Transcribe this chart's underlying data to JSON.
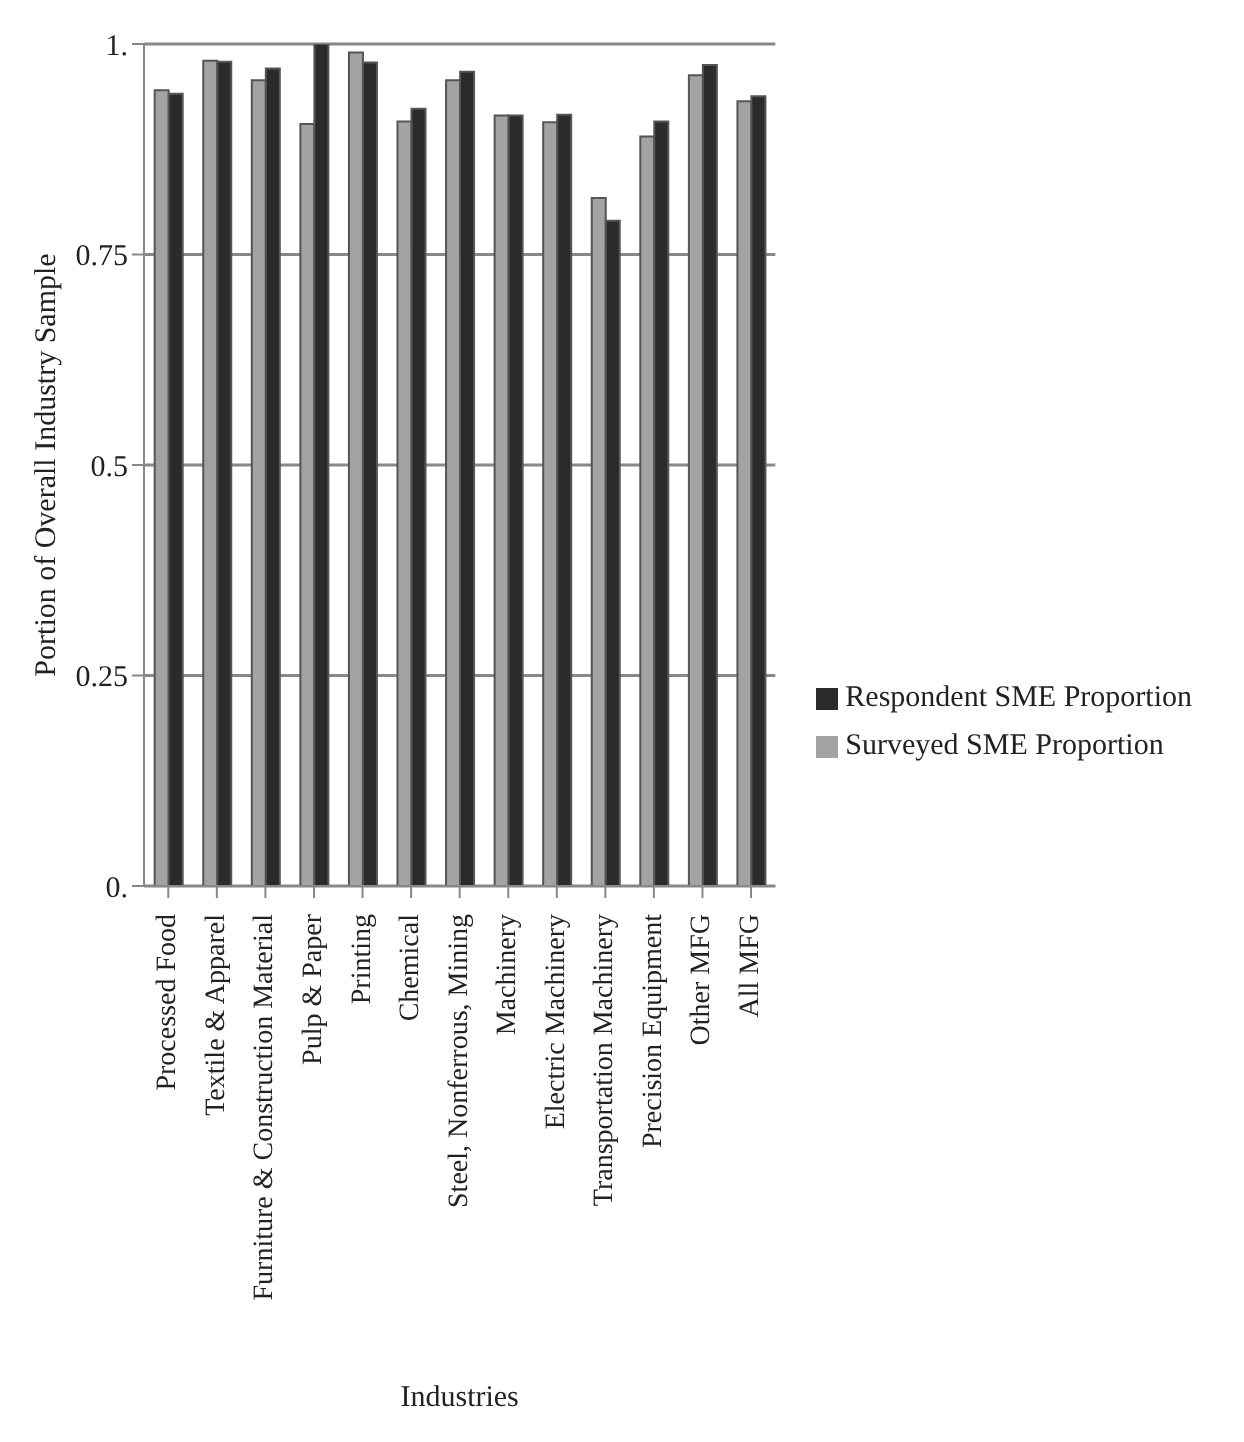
{
  "chart_data": {
    "type": "bar",
    "xlabel": "Industries",
    "ylabel": "Portion of Overall Industry Sample",
    "categories": [
      "Processed Food",
      "Textile & Apparel",
      "Furniture & Construction Material",
      "Pulp & Paper",
      "Printing",
      "Chemical",
      "Steel, Nonferrous, Mining",
      "Machinery",
      "Electric Machinery",
      "Transportation Machinery",
      "Precision Equipment",
      "Other MFG",
      "All MFG"
    ],
    "series": [
      {
        "name": "Surveyed SME Proportion",
        "color": "#a3a3a3",
        "values": [
          0.945,
          0.98,
          0.957,
          0.905,
          0.99,
          0.908,
          0.957,
          0.915,
          0.907,
          0.817,
          0.89,
          0.963,
          0.932
        ]
      },
      {
        "name": "Respondent SME Proportion",
        "color": "#2b2b2b",
        "values": [
          0.941,
          0.979,
          0.971,
          1.0,
          0.978,
          0.923,
          0.967,
          0.915,
          0.916,
          0.79,
          0.908,
          0.975,
          0.938
        ]
      }
    ],
    "ylim": [
      0,
      1
    ],
    "yticks": [
      {
        "value": 0,
        "label": "0."
      },
      0.25,
      0.5,
      0.75,
      {
        "value": 1,
        "label": "1."
      }
    ],
    "grid": "y",
    "legend": "right"
  }
}
